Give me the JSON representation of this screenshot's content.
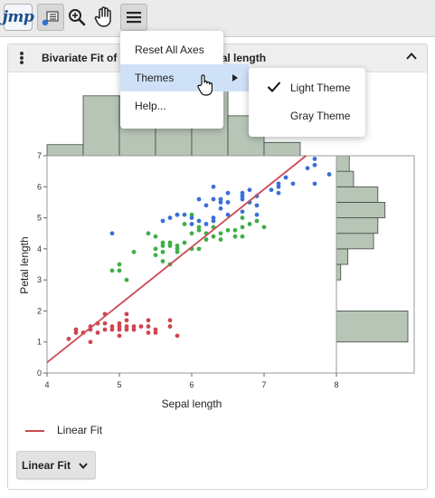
{
  "app": {
    "logo_text": "jmp"
  },
  "toolbar": {
    "icons": [
      "jmp-logo",
      "selection-cursor-icon",
      "zoom-in-icon",
      "hand-pan-icon",
      "hamburger-menu-icon"
    ]
  },
  "report": {
    "title": "Bivariate Fit of Petal length By Sepal length"
  },
  "menu": {
    "items": [
      "Reset All Axes",
      "Themes",
      "Help..."
    ],
    "submenu": {
      "items": [
        {
          "label": "Light Theme",
          "checked": true
        },
        {
          "label": "Gray Theme",
          "checked": false
        }
      ]
    }
  },
  "legend": {
    "label": "Linear Fit"
  },
  "fit_button": {
    "label": "Linear Fit"
  },
  "colors": {
    "setosa": "#d0454f",
    "versicolor": "#3fae49",
    "virginica": "#3a6fd8",
    "histogram": "#b7c5b7",
    "fit_line": "#cc4b55",
    "menu_highlight": "#cfe1f7"
  },
  "chart_data": {
    "type": "scatter",
    "title": "",
    "xlabel": "Sepal length",
    "ylabel": "Petal length",
    "xlim": [
      4,
      8
    ],
    "ylim": [
      0,
      7
    ],
    "x_ticks": [
      "4",
      "5",
      "6",
      "7",
      "8"
    ],
    "y_ticks": [
      "0",
      "1",
      "2",
      "3",
      "4",
      "5",
      "6",
      "7"
    ],
    "fit": {
      "type": "linear",
      "slope": 1.86,
      "intercept": -7.1
    },
    "series": [
      {
        "color": "#d0454f",
        "points": [
          [
            4.3,
            1.1
          ],
          [
            4.4,
            1.3
          ],
          [
            4.4,
            1.4
          ],
          [
            4.5,
            1.3
          ],
          [
            4.6,
            1.0
          ],
          [
            4.6,
            1.4
          ],
          [
            4.6,
            1.5
          ],
          [
            4.7,
            1.3
          ],
          [
            4.7,
            1.6
          ],
          [
            4.8,
            1.4
          ],
          [
            4.8,
            1.6
          ],
          [
            4.8,
            1.9
          ],
          [
            4.9,
            1.4
          ],
          [
            4.9,
            1.5
          ],
          [
            5.0,
            1.2
          ],
          [
            5.0,
            1.4
          ],
          [
            5.0,
            1.5
          ],
          [
            5.0,
            1.6
          ],
          [
            5.1,
            1.4
          ],
          [
            5.1,
            1.5
          ],
          [
            5.1,
            1.7
          ],
          [
            5.1,
            1.9
          ],
          [
            5.2,
            1.4
          ],
          [
            5.2,
            1.5
          ],
          [
            5.3,
            1.5
          ],
          [
            5.4,
            1.3
          ],
          [
            5.4,
            1.5
          ],
          [
            5.4,
            1.7
          ],
          [
            5.5,
            1.3
          ],
          [
            5.5,
            1.4
          ],
          [
            5.7,
            1.5
          ],
          [
            5.7,
            1.7
          ],
          [
            5.8,
            1.2
          ]
        ]
      },
      {
        "color": "#3fae49",
        "points": [
          [
            4.9,
            3.3
          ],
          [
            5.0,
            3.3
          ],
          [
            5.0,
            3.5
          ],
          [
            5.1,
            3.0
          ],
          [
            5.2,
            3.9
          ],
          [
            5.4,
            4.5
          ],
          [
            5.5,
            3.8
          ],
          [
            5.5,
            4.0
          ],
          [
            5.5,
            4.4
          ],
          [
            5.6,
            3.6
          ],
          [
            5.6,
            3.9
          ],
          [
            5.6,
            4.1
          ],
          [
            5.6,
            4.2
          ],
          [
            5.7,
            3.5
          ],
          [
            5.7,
            4.1
          ],
          [
            5.7,
            4.2
          ],
          [
            5.8,
            3.9
          ],
          [
            5.8,
            4.0
          ],
          [
            5.8,
            4.1
          ],
          [
            5.9,
            4.2
          ],
          [
            5.9,
            4.8
          ],
          [
            6.0,
            4.0
          ],
          [
            6.0,
            4.5
          ],
          [
            6.0,
            5.1
          ],
          [
            6.1,
            4.0
          ],
          [
            6.1,
            4.6
          ],
          [
            6.1,
            4.7
          ],
          [
            6.2,
            4.3
          ],
          [
            6.2,
            4.5
          ],
          [
            6.3,
            4.4
          ],
          [
            6.3,
            4.7
          ],
          [
            6.4,
            4.3
          ],
          [
            6.4,
            4.5
          ],
          [
            6.5,
            4.6
          ],
          [
            6.6,
            4.4
          ],
          [
            6.6,
            4.6
          ],
          [
            6.7,
            4.4
          ],
          [
            6.7,
            4.7
          ],
          [
            6.7,
            5.0
          ],
          [
            6.8,
            4.8
          ],
          [
            6.9,
            4.9
          ],
          [
            7.0,
            4.7
          ]
        ]
      },
      {
        "color": "#3a6fd8",
        "points": [
          [
            4.9,
            4.5
          ],
          [
            5.6,
            4.9
          ],
          [
            5.7,
            5.0
          ],
          [
            5.8,
            5.1
          ],
          [
            5.8,
            5.1
          ],
          [
            5.9,
            5.1
          ],
          [
            6.0,
            4.8
          ],
          [
            6.0,
            5.0
          ],
          [
            6.1,
            4.9
          ],
          [
            6.1,
            5.6
          ],
          [
            6.2,
            4.8
          ],
          [
            6.2,
            5.4
          ],
          [
            6.3,
            4.9
          ],
          [
            6.3,
            5.0
          ],
          [
            6.3,
            5.6
          ],
          [
            6.3,
            6.0
          ],
          [
            6.4,
            5.3
          ],
          [
            6.4,
            5.5
          ],
          [
            6.4,
            5.6
          ],
          [
            6.5,
            5.1
          ],
          [
            6.5,
            5.5
          ],
          [
            6.5,
            5.8
          ],
          [
            6.7,
            5.2
          ],
          [
            6.7,
            5.6
          ],
          [
            6.7,
            5.7
          ],
          [
            6.7,
            5.8
          ],
          [
            6.8,
            5.5
          ],
          [
            6.8,
            5.9
          ],
          [
            6.9,
            5.1
          ],
          [
            6.9,
            5.4
          ],
          [
            6.9,
            5.7
          ],
          [
            7.1,
            5.9
          ],
          [
            7.2,
            5.8
          ],
          [
            7.2,
            6.0
          ],
          [
            7.2,
            6.1
          ],
          [
            7.3,
            6.3
          ],
          [
            7.4,
            6.1
          ],
          [
            7.6,
            6.6
          ],
          [
            7.7,
            6.1
          ],
          [
            7.7,
            6.7
          ],
          [
            7.7,
            6.9
          ],
          [
            7.9,
            6.4
          ]
        ]
      }
    ],
    "x_histogram": {
      "bins": [
        [
          4,
          4.5
        ],
        [
          4.5,
          5
        ],
        [
          5,
          5.5
        ],
        [
          5.5,
          6
        ],
        [
          6,
          6.5
        ],
        [
          6.5,
          7
        ],
        [
          7,
          7.5
        ]
      ],
      "counts": [
        5,
        27,
        27,
        30,
        31,
        18,
        6
      ]
    },
    "y_histogram": {
      "bins": [
        [
          1,
          2
        ],
        [
          3,
          3.5
        ],
        [
          3.5,
          4
        ],
        [
          4,
          4.5
        ],
        [
          4.5,
          5
        ],
        [
          5,
          5.5
        ],
        [
          5.5,
          6
        ],
        [
          6,
          6.5
        ],
        [
          6.5,
          7
        ]
      ],
      "counts": [
        50,
        3,
        8,
        26,
        29,
        34,
        29,
        12,
        9
      ]
    }
  }
}
